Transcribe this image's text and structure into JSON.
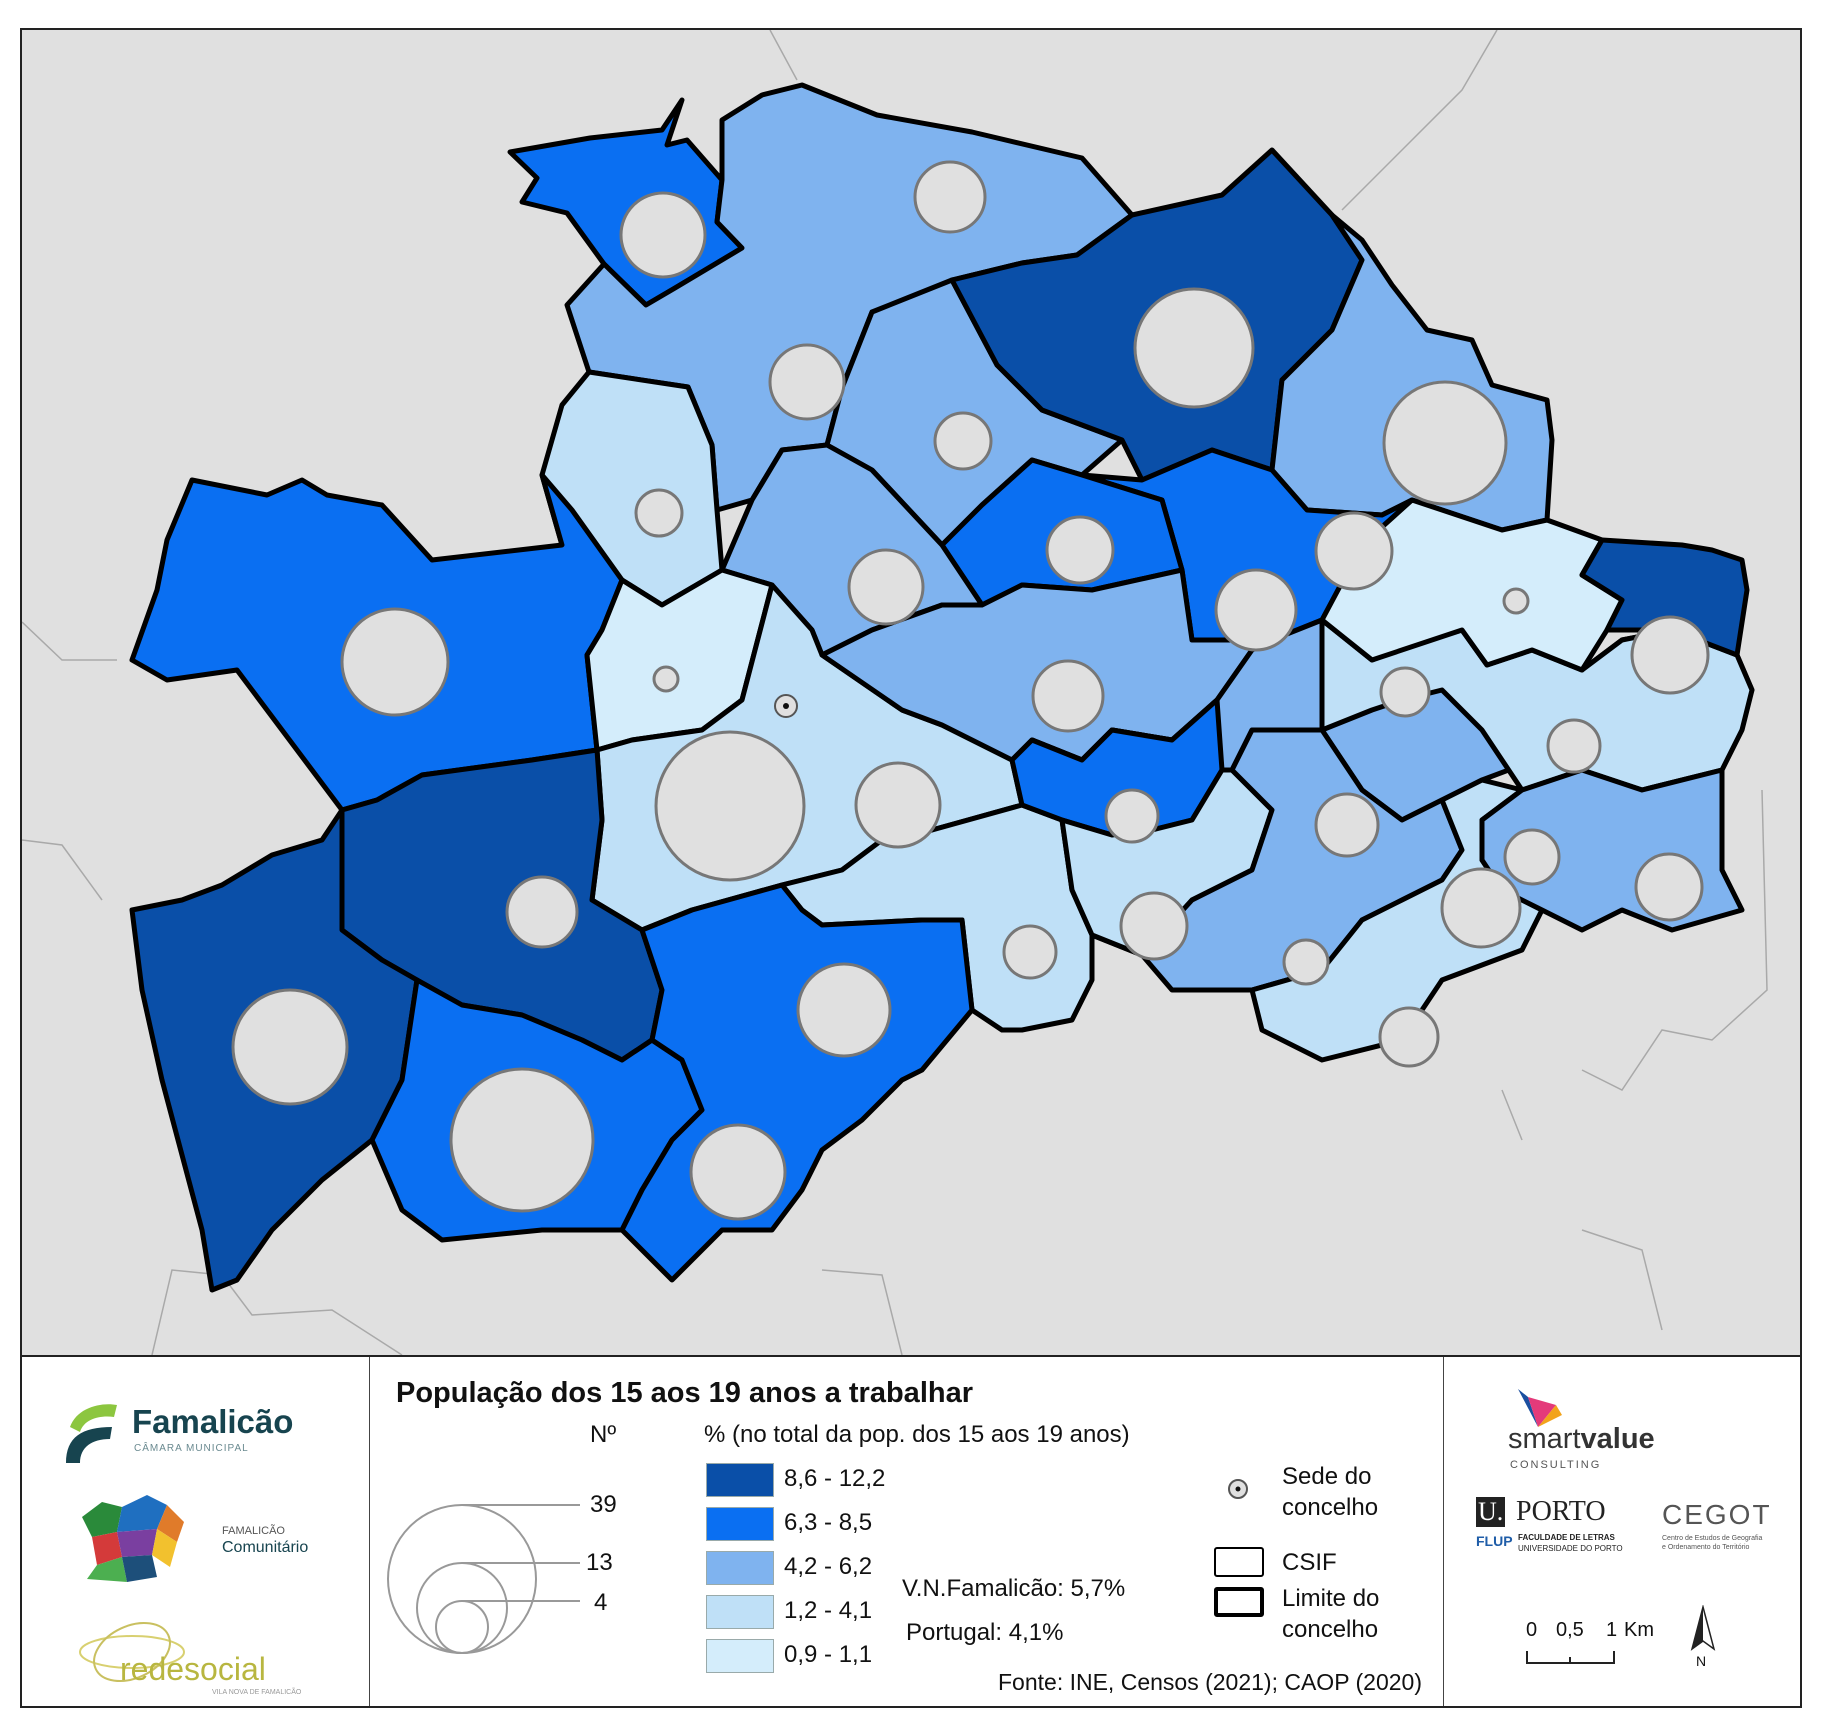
{
  "legend": {
    "title": "População dos 15 aos 19 anos a trabalhar",
    "circle_header": "Nº",
    "circle_sizes": [
      39,
      13,
      4
    ],
    "pct_header": "% (no total da pop. dos 15 aos 19 anos)",
    "classes": [
      {
        "label": "8,6 - 12,2",
        "color": "#0a4fa8"
      },
      {
        "label": "6,3 - 8,5",
        "color": "#0a6ff2"
      },
      {
        "label": "4,2 - 6,2",
        "color": "#7fb3ef"
      },
      {
        "label": "1,2 - 4,1",
        "color": "#bfe0f7"
      },
      {
        "label": "0,9 - 1,1",
        "color": "#d4edfb"
      }
    ],
    "reference_famalicao": "V.N.Famalicão: 5,7%",
    "reference_portugal": "Portugal: 4,1%",
    "sede_label": "Sede do concelho",
    "csif_label": "CSIF",
    "limite_label": "Limite do concelho",
    "source": "Fonte: INE, Censos (2021); CAOP (2020)"
  },
  "scale": {
    "ticks": [
      "0",
      "0,5",
      "1"
    ],
    "unit": "Km"
  },
  "north_label": "N",
  "logos": {
    "famalicao_name": "Famalicão",
    "famalicao_sub": "CÂMARA MUNICIPAL",
    "comunitario_small": "FAMALICÃO",
    "comunitario_name": "Comunitário",
    "redesocial_name": "redesocial",
    "redesocial_sub": "VILA NOVA DE FAMALICÃO",
    "smart_a": "smart",
    "smart_b": "value",
    "smart_sub": "CONSULTING",
    "uporto_u": "U.",
    "uporto_name": "PORTO",
    "flup": "FLUP",
    "flup_sub1": "FACULDADE DE LETRAS",
    "flup_sub2": "UNIVERSIDADE DO PORTO",
    "cegot": "CEGOT",
    "cegot_sub1": "Centro de Estudos de Geografia",
    "cegot_sub2": "e Ordenamento do Território"
  }
}
